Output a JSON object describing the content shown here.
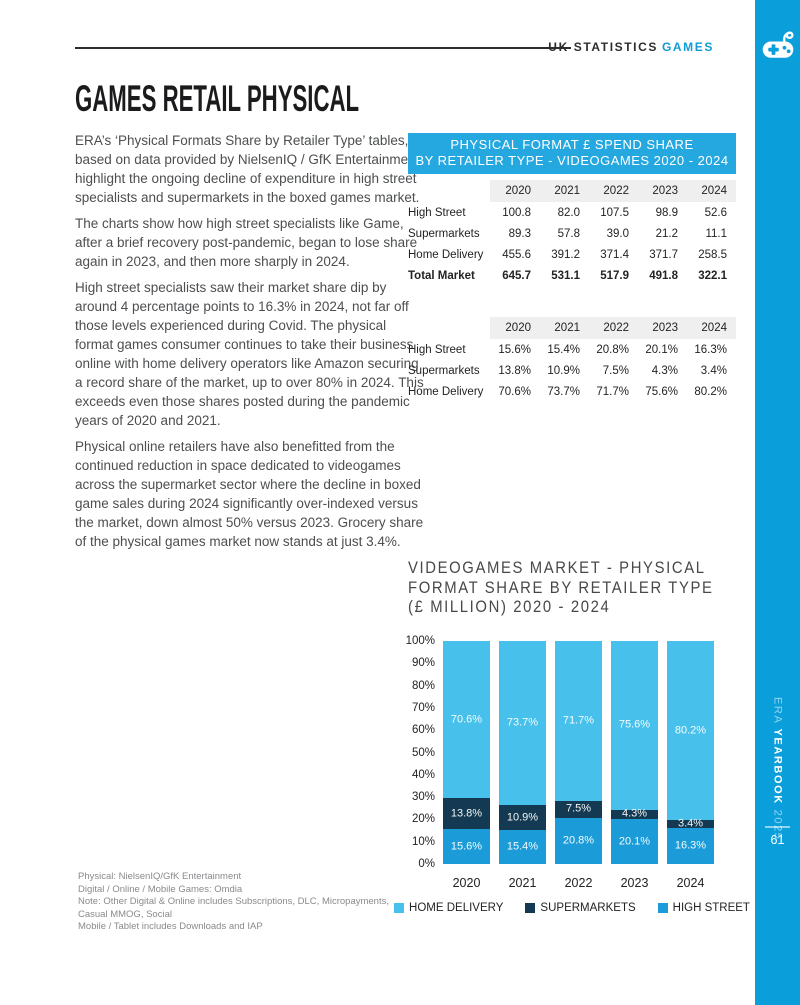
{
  "colors": {
    "sidebar_blue": "#0a9fdb",
    "banner_blue": "#25a8e0",
    "home_delivery_blue": "#47c1ec",
    "supermarkets_navy": "#133a52",
    "high_street_blue": "#1b9cd8",
    "band_gray": "#efeff0"
  },
  "header": {
    "breadcrumb_plain": "UK STATISTICS",
    "breadcrumb_accent": "GAMES"
  },
  "sidebar": {
    "brand_era": "ERA ",
    "brand_yearbook": "YEARBOOK",
    "brand_year": " 2025",
    "page_number": "61"
  },
  "article": {
    "title": "GAMES RETAIL PHYSICAL",
    "paragraphs": [
      "ERA’s ‘Physical Formats Share by Retailer Type’ tables, based on data provided by NielsenIQ / GfK Entertainment, highlight the ongoing decline of expenditure in high street specialists and supermarkets in the boxed games market.",
      "The charts show how high street specialists like Game, after a brief recovery post-pandemic, began to lose share again in 2023, and then more sharply in 2024.",
      "High street specialists saw their market share dip by around 4 percentage points to 16.3% in 2024, not far off those levels experienced during Covid. The physical format games consumer continues to take their business online with home delivery operators like Amazon securing a record share of the market, up to over 80% in 2024. This exceeds even those shares posted during the pandemic years of 2020 and 2021.",
      "Physical online retailers have also benefitted from the continued reduction in space dedicated to videogames across the supermarket sector where the decline in boxed game sales during 2024 significantly over-indexed versus the market, down almost 50% versus 2023. Grocery share of the physical games market now stands at just 3.4%."
    ]
  },
  "tables": {
    "banner_line1": "PHYSICAL FORMAT £ SPEND SHARE",
    "banner_line2": "BY RETAILER TYPE - VIDEOGAMES 2020 - 2024",
    "years": [
      "2020",
      "2021",
      "2022",
      "2023",
      "2024"
    ],
    "spend_rows": [
      {
        "label": "High Street",
        "values": [
          "100.8",
          "82.0",
          "107.5",
          "98.9",
          "52.6"
        ],
        "bold": false
      },
      {
        "label": "Supermarkets",
        "values": [
          "89.3",
          "57.8",
          "39.0",
          "21.2",
          "11.1"
        ],
        "bold": false
      },
      {
        "label": "Home Delivery",
        "values": [
          "455.6",
          "391.2",
          "371.4",
          "371.7",
          "258.5"
        ],
        "bold": false
      },
      {
        "label": "Total Market",
        "values": [
          "645.7",
          "531.1",
          "517.9",
          "491.8",
          "322.1"
        ],
        "bold": true
      }
    ],
    "share_rows": [
      {
        "label": "High Street",
        "values": [
          "15.6%",
          "15.4%",
          "20.8%",
          "20.1%",
          "16.3%"
        ],
        "bold": false
      },
      {
        "label": "Supermarkets",
        "values": [
          "13.8%",
          "10.9%",
          "7.5%",
          "4.3%",
          "3.4%"
        ],
        "bold": false
      },
      {
        "label": "Home Delivery",
        "values": [
          "70.6%",
          "73.7%",
          "71.7%",
          "75.6%",
          "80.2%"
        ],
        "bold": false
      }
    ]
  },
  "chart": {
    "title_line1": "VIDEOGAMES MARKET - PHYSICAL",
    "title_line2": "FORMAT SHARE BY RETAILER TYPE",
    "title_line3": "(£ MILLION) 2020 - 2024"
  },
  "chart_data": {
    "type": "bar",
    "stacked": true,
    "percent_stacked": true,
    "title": "VIDEOGAMES MARKET - PHYSICAL FORMAT SHARE BY RETAILER TYPE (£ MILLION) 2020 - 2024",
    "categories": [
      "2020",
      "2021",
      "2022",
      "2023",
      "2024"
    ],
    "series": [
      {
        "name": "HIGH STREET",
        "color": "#1b9cd8",
        "values": [
          15.6,
          15.4,
          20.8,
          20.1,
          16.3
        ]
      },
      {
        "name": "SUPERMARKETS",
        "color": "#133a52",
        "values": [
          13.8,
          10.9,
          7.5,
          4.3,
          3.4
        ]
      },
      {
        "name": "HOME DELIVERY",
        "color": "#47c1ec",
        "values": [
          70.6,
          73.7,
          71.7,
          75.6,
          80.2
        ]
      }
    ],
    "y_ticks": [
      "100%",
      "90%",
      "80%",
      "70%",
      "60%",
      "50%",
      "40%",
      "30%",
      "20%",
      "10%",
      "0%"
    ],
    "ylim": [
      0,
      100
    ],
    "grid": false,
    "legend_position": "bottom",
    "legend": [
      {
        "label": "HOME DELIVERY",
        "color": "#47c1ec"
      },
      {
        "label": "SUPERMARKETS",
        "color": "#133a52"
      },
      {
        "label": "HIGH STREET",
        "color": "#1b9cd8"
      }
    ]
  },
  "footnotes": [
    "Physical: NielsenIQ/GfK Entertainment",
    "Digital / Online / Mobile Games: Omdia",
    "Note: Other Digital & Online includes Subscriptions, DLC, Micropayments,",
    "Casual MMOG, Social",
    "Mobile / Tablet includes Downloads and IAP"
  ]
}
